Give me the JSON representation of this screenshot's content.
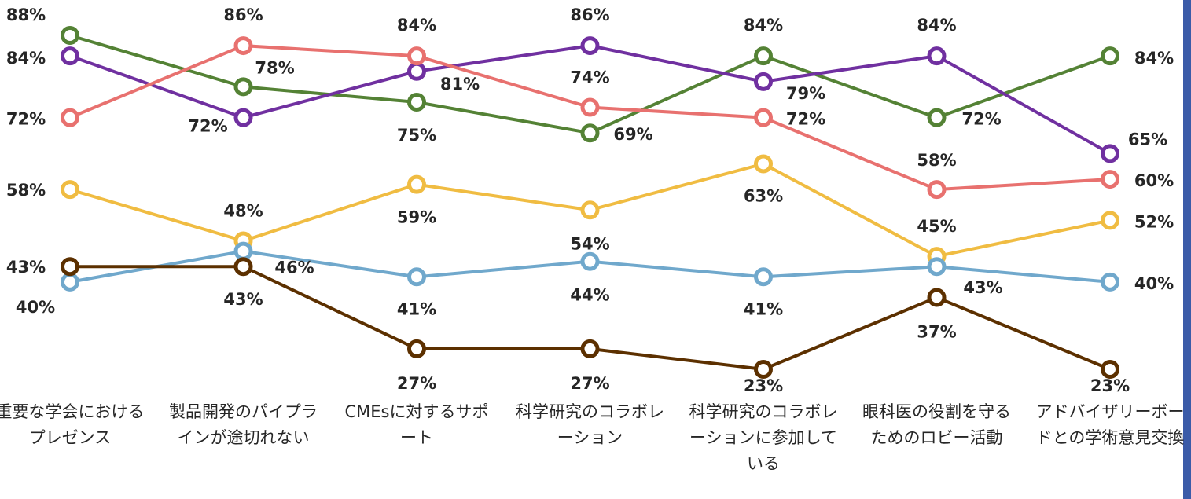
{
  "chart_data": {
    "type": "line",
    "categories": [
      "重要な学会におけるプレゼンス",
      "製品開発のパイプラインが途切れない",
      "CMEsに対するサポート",
      "科学研究のコラボレーション",
      "科学研究のコラボレーションに参加している",
      "眼科医の役割を守るためのロビー活動",
      "アドバイザリーボードとの学術意見交換"
    ],
    "series": [
      {
        "color": "#548235",
        "values": [
          88,
          78,
          75,
          69,
          84,
          72,
          84
        ],
        "value_labels": [
          "88%",
          "78%",
          "75%",
          "69%",
          "84%",
          "72%",
          "84%"
        ]
      },
      {
        "color": "#7030a0",
        "values": [
          84,
          72,
          81,
          86,
          79,
          84,
          65
        ],
        "value_labels": [
          "84%",
          "72%",
          "81%",
          "86%",
          "79%",
          "84%",
          "65%"
        ]
      },
      {
        "color": "#e8716f",
        "values": [
          72,
          86,
          84,
          74,
          72,
          58,
          60
        ],
        "value_labels": [
          "72%",
          "86%",
          "84%",
          "74%",
          "72%",
          "58%",
          "60%"
        ]
      },
      {
        "color": "#f0bc42",
        "values": [
          58,
          48,
          59,
          54,
          63,
          45,
          52
        ],
        "value_labels": [
          "58%",
          "48%",
          "59%",
          "54%",
          "63%",
          "45%",
          "52%"
        ]
      },
      {
        "color": "#70a8cc",
        "values": [
          40,
          46,
          41,
          44,
          41,
          43,
          40
        ],
        "value_labels": [
          "40%",
          "46%",
          "41%",
          "44%",
          "41%",
          "43%",
          "40%"
        ]
      },
      {
        "color": "#5c3000",
        "values": [
          43,
          43,
          27,
          27,
          23,
          37,
          23
        ],
        "value_labels": [
          "43%",
          "43%",
          "27%",
          "27%",
          "23%",
          "37%",
          "23%"
        ]
      }
    ]
  }
}
